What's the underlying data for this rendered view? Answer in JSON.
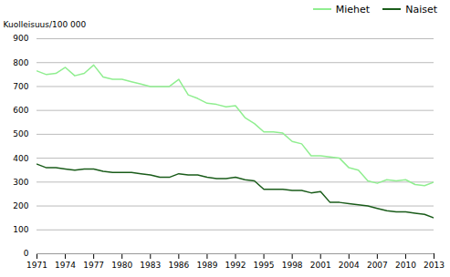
{
  "chart_data": {
    "type": "line",
    "ylabel": "Kuolleisuus/100 000",
    "x": [
      1971,
      1972,
      1973,
      1974,
      1975,
      1976,
      1977,
      1978,
      1979,
      1980,
      1981,
      1982,
      1983,
      1984,
      1985,
      1986,
      1987,
      1988,
      1989,
      1990,
      1991,
      1992,
      1993,
      1994,
      1995,
      1996,
      1997,
      1998,
      1999,
      2000,
      2001,
      2002,
      2003,
      2004,
      2005,
      2006,
      2007,
      2008,
      2009,
      2010,
      2011,
      2012,
      2013
    ],
    "series": [
      {
        "name": "Miehet",
        "color": "#90EE90",
        "values": [
          765,
          750,
          755,
          780,
          745,
          755,
          790,
          740,
          730,
          730,
          720,
          710,
          700,
          700,
          700,
          730,
          665,
          650,
          630,
          625,
          615,
          620,
          570,
          545,
          510,
          510,
          505,
          470,
          460,
          410,
          410,
          405,
          400,
          360,
          350,
          305,
          295,
          310,
          305,
          310,
          290,
          285,
          300
        ]
      },
      {
        "name": "Naiset",
        "color": "#1a5c1a",
        "values": [
          375,
          360,
          360,
          355,
          350,
          355,
          355,
          345,
          340,
          340,
          340,
          335,
          330,
          320,
          320,
          335,
          330,
          330,
          320,
          315,
          315,
          320,
          310,
          305,
          270,
          270,
          270,
          265,
          265,
          255,
          260,
          215,
          215,
          210,
          205,
          200,
          190,
          180,
          175,
          175,
          170,
          165,
          150
        ]
      }
    ],
    "xlim": [
      1971,
      2013
    ],
    "xticks": [
      1971,
      1974,
      1977,
      1980,
      1983,
      1986,
      1989,
      1992,
      1995,
      1998,
      2001,
      2004,
      2007,
      2010,
      2013
    ],
    "ylim": [
      0,
      900
    ],
    "yticks": [
      0,
      100,
      200,
      300,
      400,
      500,
      600,
      700,
      800,
      900
    ],
    "grid": "y",
    "legend": "upper right"
  }
}
